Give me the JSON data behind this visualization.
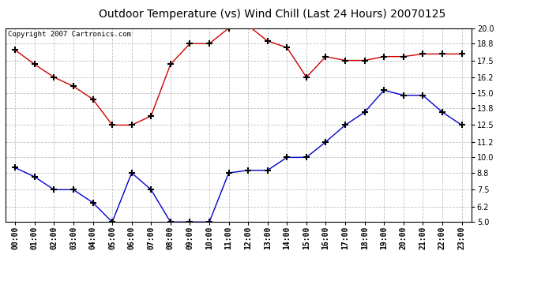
{
  "title": "Outdoor Temperature (vs) Wind Chill (Last 24 Hours) 20070125",
  "copyright": "Copyright 2007 Cartronics.com",
  "x_labels": [
    "00:00",
    "01:00",
    "02:00",
    "03:00",
    "04:00",
    "05:00",
    "06:00",
    "07:00",
    "08:00",
    "09:00",
    "10:00",
    "11:00",
    "12:00",
    "13:00",
    "14:00",
    "15:00",
    "16:00",
    "17:00",
    "18:00",
    "19:00",
    "20:00",
    "21:00",
    "22:00",
    "23:00"
  ],
  "red_data": [
    18.3,
    17.2,
    16.2,
    15.5,
    14.5,
    12.5,
    12.5,
    13.2,
    17.2,
    18.8,
    18.8,
    20.0,
    20.2,
    19.0,
    18.5,
    16.2,
    17.8,
    17.5,
    17.5,
    17.8,
    17.8,
    18.0,
    18.0,
    18.0
  ],
  "blue_data": [
    9.2,
    8.5,
    7.5,
    7.5,
    6.5,
    5.0,
    8.8,
    7.5,
    5.0,
    5.0,
    5.0,
    8.8,
    9.0,
    9.0,
    10.0,
    10.0,
    11.2,
    12.5,
    13.5,
    15.2,
    14.8,
    14.8,
    13.5,
    12.5
  ],
  "ylim": [
    5.0,
    20.0
  ],
  "yticks": [
    5.0,
    6.2,
    7.5,
    8.8,
    10.0,
    11.2,
    12.5,
    13.8,
    15.0,
    16.2,
    17.5,
    18.8,
    20.0
  ],
  "red_color": "#cc0000",
  "blue_color": "#0000cc",
  "bg_color": "#ffffff",
  "grid_color": "#b0b0b0",
  "title_fontsize": 10,
  "tick_fontsize": 7,
  "copyright_fontsize": 6.5
}
